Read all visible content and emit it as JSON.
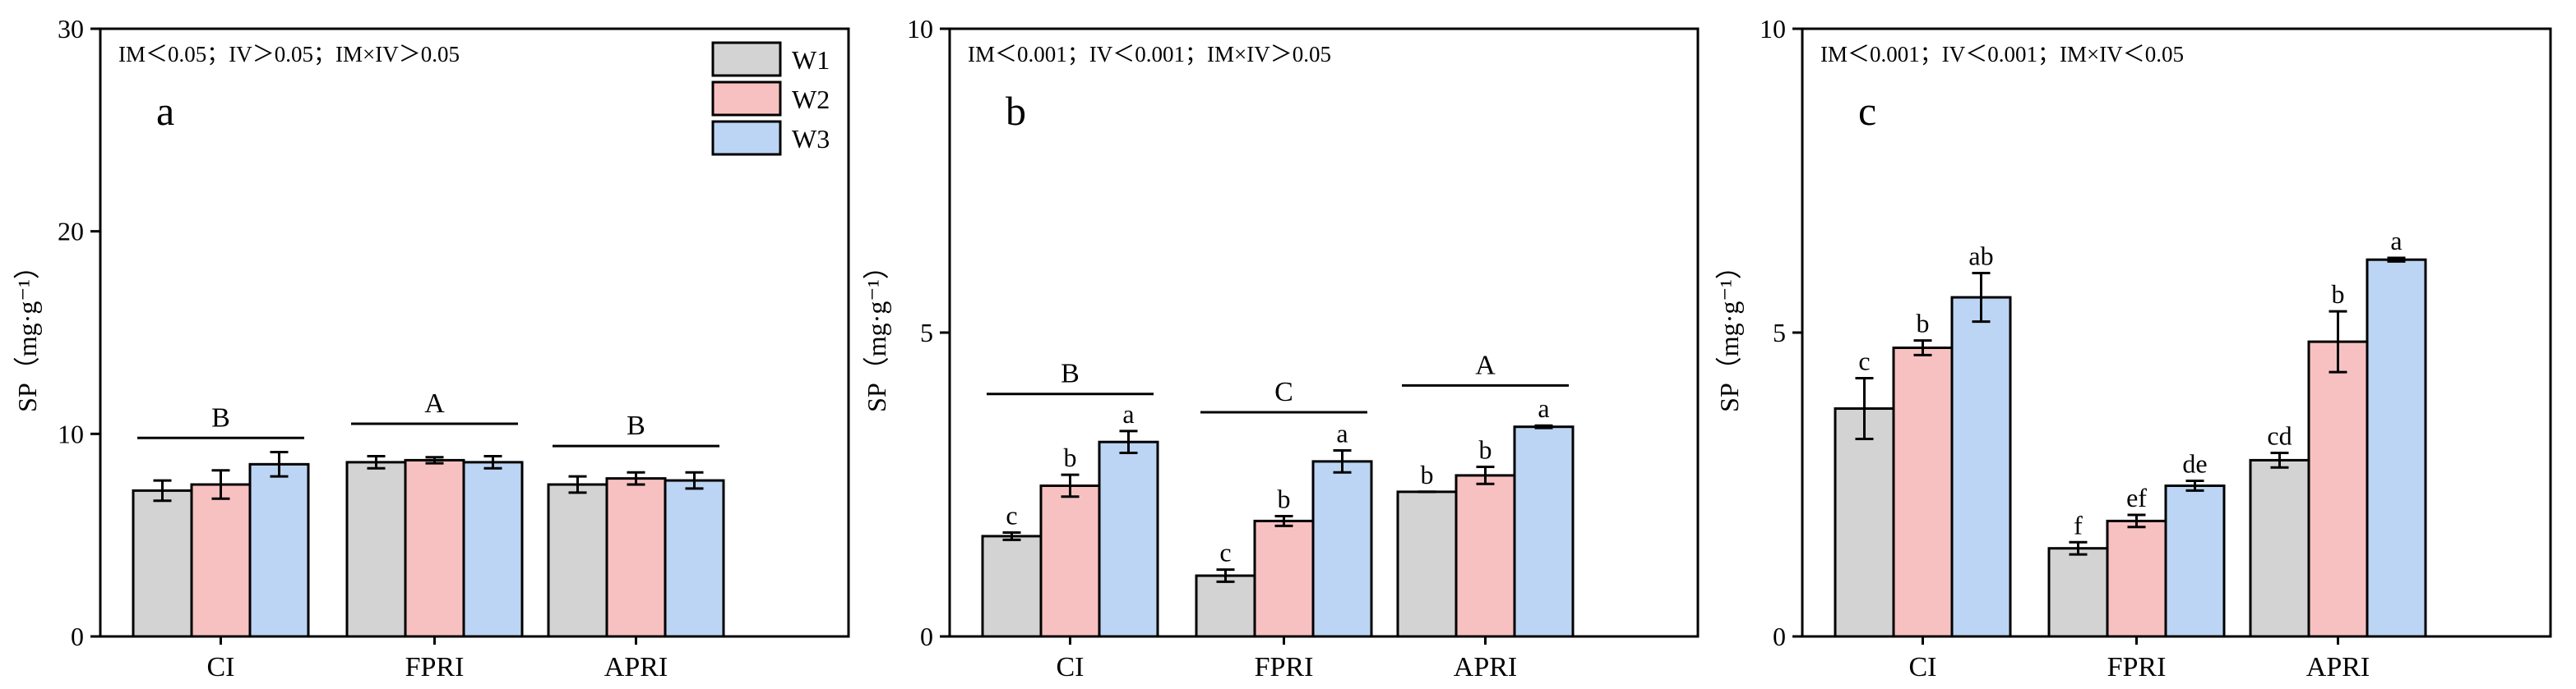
{
  "colors": {
    "W1": "#d3d3d3",
    "W2": "#f8c1c1",
    "W3": "#bcd5f4"
  },
  "chart_data": [
    {
      "type": "bar",
      "panel": "a",
      "annotation": "IM＜0.05；IV＞0.05；IM×IV＞0.05",
      "ylabel": "SP（mg·g⁻¹）",
      "ylim": [
        0,
        30
      ],
      "yticks": [
        0,
        10,
        20,
        30
      ],
      "categories": [
        "CI",
        "FPRI",
        "APRI"
      ],
      "series": [
        {
          "name": "W1",
          "values": [
            7.2,
            8.6,
            7.5
          ],
          "errors": [
            0.5,
            0.3,
            0.4
          ]
        },
        {
          "name": "W2",
          "values": [
            7.5,
            8.7,
            7.8
          ],
          "errors": [
            0.7,
            0.15,
            0.3
          ]
        },
        {
          "name": "W3",
          "values": [
            8.5,
            8.6,
            7.7
          ],
          "errors": [
            0.6,
            0.3,
            0.4
          ]
        }
      ],
      "bar_letters": [],
      "group_letters": [
        "B",
        "A",
        "B"
      ],
      "group_line_values": [
        9.8,
        10.5,
        9.4
      ],
      "legend": [
        "W1",
        "W2",
        "W3"
      ]
    },
    {
      "type": "bar",
      "panel": "b",
      "annotation": "IM＜0.001；IV＜0.001；IM×IV＞0.05",
      "ylabel": "SP（mg·g⁻¹）",
      "ylim": [
        0,
        10
      ],
      "yticks": [
        0,
        5,
        10
      ],
      "categories": [
        "CI",
        "FPRI",
        "APRI"
      ],
      "series": [
        {
          "name": "W1",
          "values": [
            1.65,
            1.0,
            2.38
          ],
          "errors": [
            0.06,
            0.1,
            0.0
          ]
        },
        {
          "name": "W2",
          "values": [
            2.48,
            1.9,
            2.65
          ],
          "errors": [
            0.18,
            0.08,
            0.14
          ]
        },
        {
          "name": "W3",
          "values": [
            3.2,
            2.88,
            3.45
          ],
          "errors": [
            0.18,
            0.18,
            0.02
          ]
        }
      ],
      "bar_letters": [
        [
          "c",
          "b",
          "a"
        ],
        [
          "c",
          "b",
          "a"
        ],
        [
          "b",
          "b",
          "a"
        ]
      ],
      "group_letters": [
        "B",
        "C",
        "A"
      ],
      "group_line_values": [
        3.99,
        3.69,
        4.13
      ],
      "legend": []
    },
    {
      "type": "bar",
      "panel": "c",
      "annotation": "IM＜0.001；IV＜0.001；IM×IV＜0.05",
      "ylabel": "SP（mg·g⁻¹）",
      "ylim": [
        0,
        10
      ],
      "yticks": [
        0,
        5,
        10
      ],
      "categories": [
        "CI",
        "FPRI",
        "APRI"
      ],
      "series": [
        {
          "name": "W1",
          "values": [
            3.75,
            1.45,
            2.9
          ],
          "errors": [
            0.5,
            0.1,
            0.12
          ]
        },
        {
          "name": "W2",
          "values": [
            4.75,
            1.9,
            4.85
          ],
          "errors": [
            0.12,
            0.1,
            0.5
          ]
        },
        {
          "name": "W3",
          "values": [
            5.58,
            2.48,
            6.2
          ],
          "errors": [
            0.4,
            0.08,
            0.03
          ]
        }
      ],
      "bar_letters": [
        [
          "c",
          "b",
          "ab"
        ],
        [
          "f",
          "ef",
          "de"
        ],
        [
          "cd",
          "b",
          "a"
        ]
      ],
      "group_letters": [],
      "group_line_values": [],
      "legend": []
    }
  ]
}
